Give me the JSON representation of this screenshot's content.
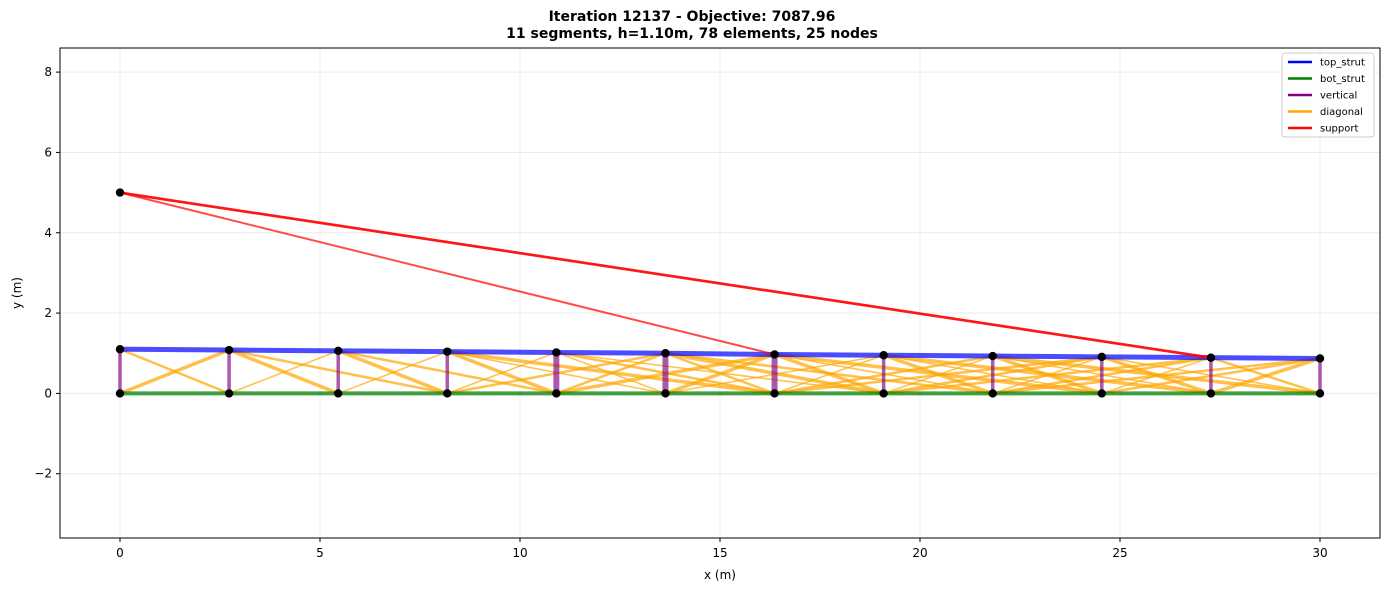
{
  "chart_data": {
    "type": "line",
    "title_line1": "Iteration 12137 - Objective: 7087.96",
    "title_line2": "11 segments, h=1.10m, 78 elements, 25 nodes",
    "xlabel": "x (m)",
    "ylabel": "y (m)",
    "xlim": [
      -1.5,
      31.5
    ],
    "ylim": [
      -3.6,
      8.6
    ],
    "xticks": [
      0,
      5,
      10,
      15,
      20,
      25,
      30
    ],
    "yticks": [
      -2,
      0,
      2,
      4,
      6,
      8
    ],
    "xtick_labels": [
      "0",
      "5",
      "10",
      "15",
      "20",
      "25",
      "30"
    ],
    "ytick_labels": [
      "−2",
      "0",
      "2",
      "4",
      "6",
      "8"
    ],
    "grid": true,
    "legend_position": "top-right",
    "legend": [
      {
        "label": "top_strut",
        "color": "#0000ff"
      },
      {
        "label": "bot_strut",
        "color": "#008000"
      },
      {
        "label": "vertical",
        "color": "#800080"
      },
      {
        "label": "diagonal",
        "color": "#ffa500"
      },
      {
        "label": "support",
        "color": "#ff0000"
      }
    ],
    "bottom_nodes_x": [
      0,
      2.727,
      5.455,
      8.182,
      10.909,
      13.636,
      16.364,
      19.091,
      21.818,
      24.545,
      27.273,
      30.0
    ],
    "top_nodes_y": [
      1.1,
      1.08,
      1.06,
      1.04,
      1.02,
      1.0,
      0.97,
      0.95,
      0.93,
      0.91,
      0.89,
      0.87
    ],
    "support_node": [
      0,
      5.0
    ],
    "support_targets": [
      [
        16.364,
        0.97
      ],
      [
        27.273,
        0.89
      ],
      [
        27.273,
        0.89
      ]
    ],
    "diagonals": [
      [
        0,
        0,
        2.727,
        1.08
      ],
      [
        0,
        1.1,
        2.727,
        0
      ],
      [
        2.727,
        0,
        5.455,
        1.06
      ],
      [
        2.727,
        1.08,
        5.455,
        0
      ],
      [
        2.727,
        1.08,
        8.182,
        0
      ],
      [
        5.455,
        0,
        8.182,
        1.04
      ],
      [
        5.455,
        1.06,
        8.182,
        0
      ],
      [
        5.455,
        1.06,
        10.909,
        0
      ],
      [
        8.182,
        0,
        10.909,
        1.02
      ],
      [
        8.182,
        1.04,
        10.909,
        0
      ],
      [
        8.182,
        0,
        13.636,
        1.0
      ],
      [
        8.182,
        1.04,
        13.636,
        0
      ],
      [
        8.182,
        1.04,
        16.364,
        0
      ],
      [
        10.909,
        0,
        13.636,
        1.0
      ],
      [
        10.909,
        1.02,
        13.636,
        0
      ],
      [
        10.909,
        0,
        16.364,
        0.97
      ],
      [
        10.909,
        1.02,
        16.364,
        0
      ],
      [
        10.909,
        1.02,
        19.091,
        0
      ],
      [
        13.636,
        0,
        16.364,
        0.97
      ],
      [
        13.636,
        1.0,
        16.364,
        0
      ],
      [
        13.636,
        0,
        19.091,
        0.95
      ],
      [
        13.636,
        1.0,
        19.091,
        0
      ],
      [
        13.636,
        1.0,
        21.818,
        0
      ],
      [
        16.364,
        0,
        19.091,
        0.95
      ],
      [
        16.364,
        0.97,
        19.091,
        0
      ],
      [
        16.364,
        0,
        21.818,
        0.93
      ],
      [
        16.364,
        0.97,
        21.818,
        0
      ],
      [
        16.364,
        0.97,
        24.545,
        0
      ],
      [
        16.364,
        0,
        24.545,
        0.91
      ],
      [
        19.091,
        0,
        21.818,
        0.93
      ],
      [
        19.091,
        0.95,
        21.818,
        0
      ],
      [
        19.091,
        0,
        24.545,
        0.91
      ],
      [
        19.091,
        0.95,
        24.545,
        0
      ],
      [
        19.091,
        0.95,
        27.273,
        0
      ],
      [
        19.091,
        0,
        27.273,
        0.89
      ],
      [
        21.818,
        0,
        24.545,
        0.91
      ],
      [
        21.818,
        0.93,
        24.545,
        0
      ],
      [
        21.818,
        0,
        27.273,
        0.89
      ],
      [
        21.818,
        0.93,
        27.273,
        0
      ],
      [
        21.818,
        0.93,
        30.0,
        0
      ],
      [
        21.818,
        0,
        30.0,
        0.87
      ],
      [
        24.545,
        0,
        27.273,
        0.89
      ],
      [
        24.545,
        0.91,
        27.273,
        0
      ],
      [
        24.545,
        0,
        30.0,
        0.87
      ],
      [
        24.545,
        0.91,
        30.0,
        0
      ],
      [
        27.273,
        0,
        30.0,
        0.87
      ],
      [
        27.273,
        0.89,
        30.0,
        0
      ]
    ]
  }
}
